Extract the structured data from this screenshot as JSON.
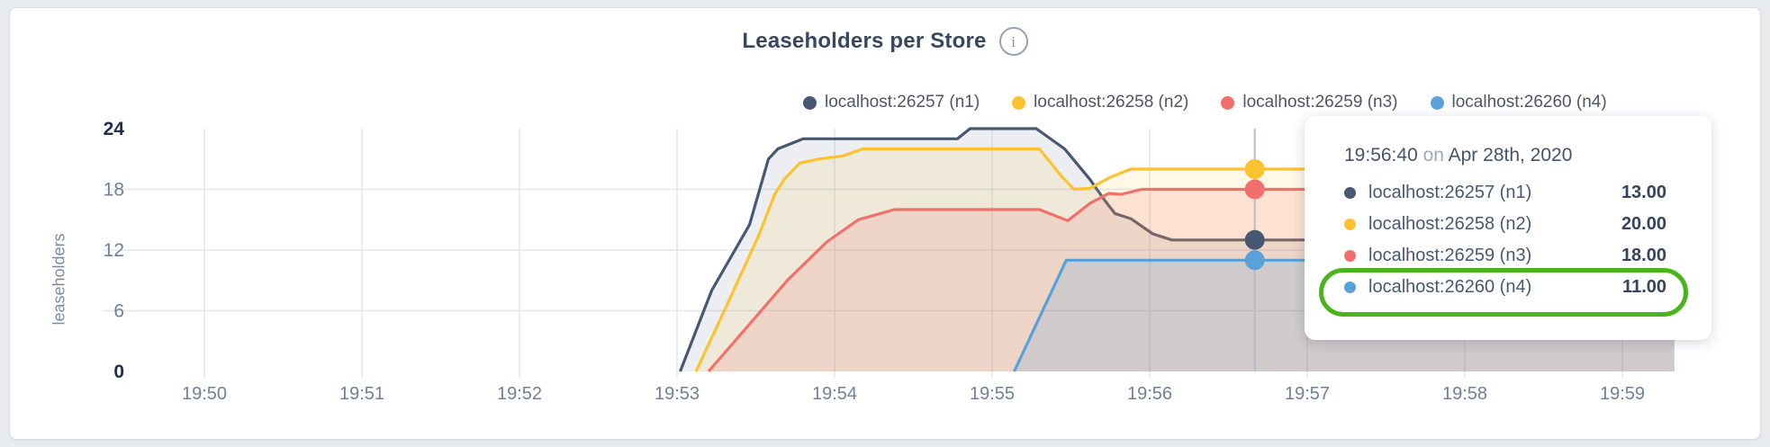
{
  "header": {
    "title": "Leaseholders per Store",
    "info_glyph": "i"
  },
  "chart_data": {
    "type": "line",
    "title": "Leaseholders per Store",
    "ylabel": "leaseholders",
    "xlabel": "",
    "ylim": [
      0,
      24
    ],
    "yticks": [
      0,
      6,
      12,
      18,
      24
    ],
    "xticks": [
      "19:50",
      "19:51",
      "19:52",
      "19:53",
      "19:54",
      "19:55",
      "19:56",
      "19:57",
      "19:58",
      "19:59"
    ],
    "x_unit": "minutes after 19:50",
    "grid": true,
    "legend_position": "top-right",
    "series": [
      {
        "name": "localhost:26257 (n1)",
        "color": "#475872",
        "fill_opacity": 0.1,
        "points": [
          [
            3.02,
            0
          ],
          [
            3.22,
            8
          ],
          [
            3.46,
            14.5
          ],
          [
            3.58,
            21
          ],
          [
            3.64,
            22
          ],
          [
            3.8,
            23
          ],
          [
            4.78,
            23
          ],
          [
            4.86,
            24
          ],
          [
            5.28,
            24
          ],
          [
            5.46,
            22
          ],
          [
            5.62,
            19
          ],
          [
            5.72,
            16.8
          ],
          [
            5.78,
            15.6
          ],
          [
            5.88,
            15.1
          ],
          [
            6.02,
            13.6
          ],
          [
            6.14,
            13
          ],
          [
            9.33,
            13
          ]
        ]
      },
      {
        "name": "localhost:26258 (n2)",
        "color": "#fdc22f",
        "fill_opacity": 0.12,
        "points": [
          [
            3.12,
            0
          ],
          [
            3.3,
            6
          ],
          [
            3.52,
            13.5
          ],
          [
            3.62,
            17.5
          ],
          [
            3.68,
            19
          ],
          [
            3.78,
            20.6
          ],
          [
            3.9,
            21
          ],
          [
            4.05,
            21.3
          ],
          [
            4.18,
            22
          ],
          [
            5.3,
            22
          ],
          [
            5.44,
            19.3
          ],
          [
            5.52,
            18
          ],
          [
            5.62,
            18.1
          ],
          [
            5.75,
            19.2
          ],
          [
            5.88,
            20
          ],
          [
            9.33,
            20
          ]
        ]
      },
      {
        "name": "localhost:26259 (n3)",
        "color": "#f2706c",
        "fill_opacity": 0.16,
        "points": [
          [
            3.2,
            0
          ],
          [
            3.45,
            4.5
          ],
          [
            3.7,
            9
          ],
          [
            3.95,
            12.8
          ],
          [
            4.15,
            15
          ],
          [
            4.38,
            16
          ],
          [
            5.3,
            16
          ],
          [
            5.48,
            14.9
          ],
          [
            5.62,
            16.6
          ],
          [
            5.74,
            17.6
          ],
          [
            5.82,
            17.5
          ],
          [
            5.95,
            18
          ],
          [
            9.33,
            18
          ]
        ]
      },
      {
        "name": "localhost:26260 (n4)",
        "color": "#58a2d9",
        "fill_opacity": 0.2,
        "points": [
          [
            5.14,
            0
          ],
          [
            5.47,
            11
          ],
          [
            9.33,
            11
          ]
        ]
      }
    ],
    "hover": {
      "time_label": "19:56:40",
      "x_minutes": 6.667,
      "values": [
        13,
        20,
        18,
        11
      ]
    }
  },
  "tooltip": {
    "header": {
      "time": "19:56:40",
      "connector": " on ",
      "date": "Apr 28th, 2020"
    },
    "rows": [
      {
        "label": "localhost:26257 (n1)",
        "value": "13.00"
      },
      {
        "label": "localhost:26258 (n2)",
        "value": "20.00"
      },
      {
        "label": "localhost:26259 (n3)",
        "value": "18.00"
      },
      {
        "label": "localhost:26260 (n4)",
        "value": "11.00"
      }
    ],
    "highlighted_row": 4
  },
  "annotation": {
    "highlight_color": "#4bb31e"
  },
  "colors": {
    "grid": "#e2e7ed",
    "hover_line": "#b6bdc8",
    "tick_label": "#6e819c",
    "tick_label_bold": "#1f2e4d",
    "page_background": "#e8ebee"
  }
}
